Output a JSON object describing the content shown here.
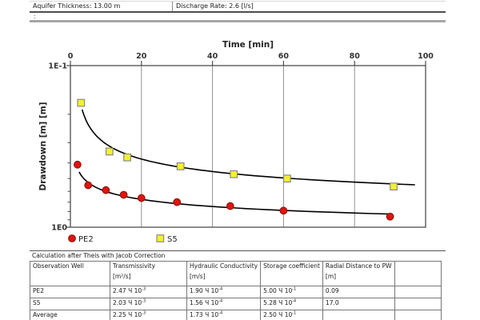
{
  "header": {
    "aquifer_thickness": "Aquifer Thickness: 13.00 m",
    "discharge_rate": "Discharge Rate: 2.6 [l/s]",
    "second_row": ":"
  },
  "chart_data": {
    "type": "scatter",
    "x_axis_label": "Time [min]",
    "y_axis_label": "Drawdown [m] [m]",
    "x_ticks": [
      0,
      20,
      40,
      60,
      80,
      100
    ],
    "xlim": [
      0,
      100
    ],
    "y_scale": "log",
    "y_inverted": true,
    "y_top_value": 0.1,
    "y_bottom_value": 1.0,
    "y_tick_labels": {
      "top": "1E-1",
      "bottom": "1E0"
    },
    "grid": "vertical-only",
    "legend_position": "bottom-left",
    "curve_color": "#000000",
    "series": [
      {
        "name": "PE2",
        "marker": "circle",
        "fill": "#e3130f",
        "edge": "#8c1a10",
        "t_min": [
          2,
          5,
          10,
          15,
          20,
          30,
          45,
          60,
          90
        ],
        "drawdown_m": [
          0.41,
          0.55,
          0.59,
          0.63,
          0.66,
          0.7,
          0.74,
          0.79,
          0.86
        ],
        "fit": {
          "a": 0.362,
          "b": 0.239,
          "t_start": 2.45,
          "t_end": 90.5
        }
      },
      {
        "name": "S5",
        "marker": "square",
        "fill": "#f4f02f",
        "edge": "#8a8a8a",
        "t_min": [
          3,
          11,
          16,
          31,
          46,
          61,
          91
        ],
        "drawdown_m": [
          0.17,
          0.34,
          0.37,
          0.42,
          0.47,
          0.5,
          0.56
        ],
        "fit": {
          "a": 0.06,
          "b": 0.245,
          "t_start": 3.3,
          "t_end": 97
        }
      }
    ]
  },
  "analysis": {
    "title": "Calculation after Theis with Jacob Correction",
    "mult_symbol": "Ч",
    "columns": [
      {
        "label": "Observation Well",
        "unit": ""
      },
      {
        "label": "Transmissivity",
        "unit": "[m²/s]"
      },
      {
        "label": "Hydraulic Conductivity",
        "unit": "[m/s]"
      },
      {
        "label": "Storage coefficient",
        "unit": ""
      },
      {
        "label": "Radial Distance to PW",
        "unit": "[m]"
      },
      {
        "label": "",
        "unit": ""
      }
    ],
    "rows": [
      {
        "well": "PE2",
        "transmissivity": {
          "m": "2.47",
          "e": "-3"
        },
        "conductivity": {
          "m": "1.90",
          "e": "-4"
        },
        "storage": {
          "m": "5.00",
          "e": "-1"
        },
        "radial": "0.09",
        "extra": ""
      },
      {
        "well": "S5",
        "transmissivity": {
          "m": "2.03",
          "e": "-3"
        },
        "conductivity": {
          "m": "1.56",
          "e": "-4"
        },
        "storage": {
          "m": "5.28",
          "e": "-4"
        },
        "radial": "17.0",
        "extra": ""
      },
      {
        "well": "Average",
        "transmissivity": {
          "m": "2.25",
          "e": "-3"
        },
        "conductivity": {
          "m": "1.73",
          "e": "-4"
        },
        "storage": {
          "m": "2.50",
          "e": "-1"
        },
        "radial": "",
        "extra": ""
      }
    ]
  }
}
